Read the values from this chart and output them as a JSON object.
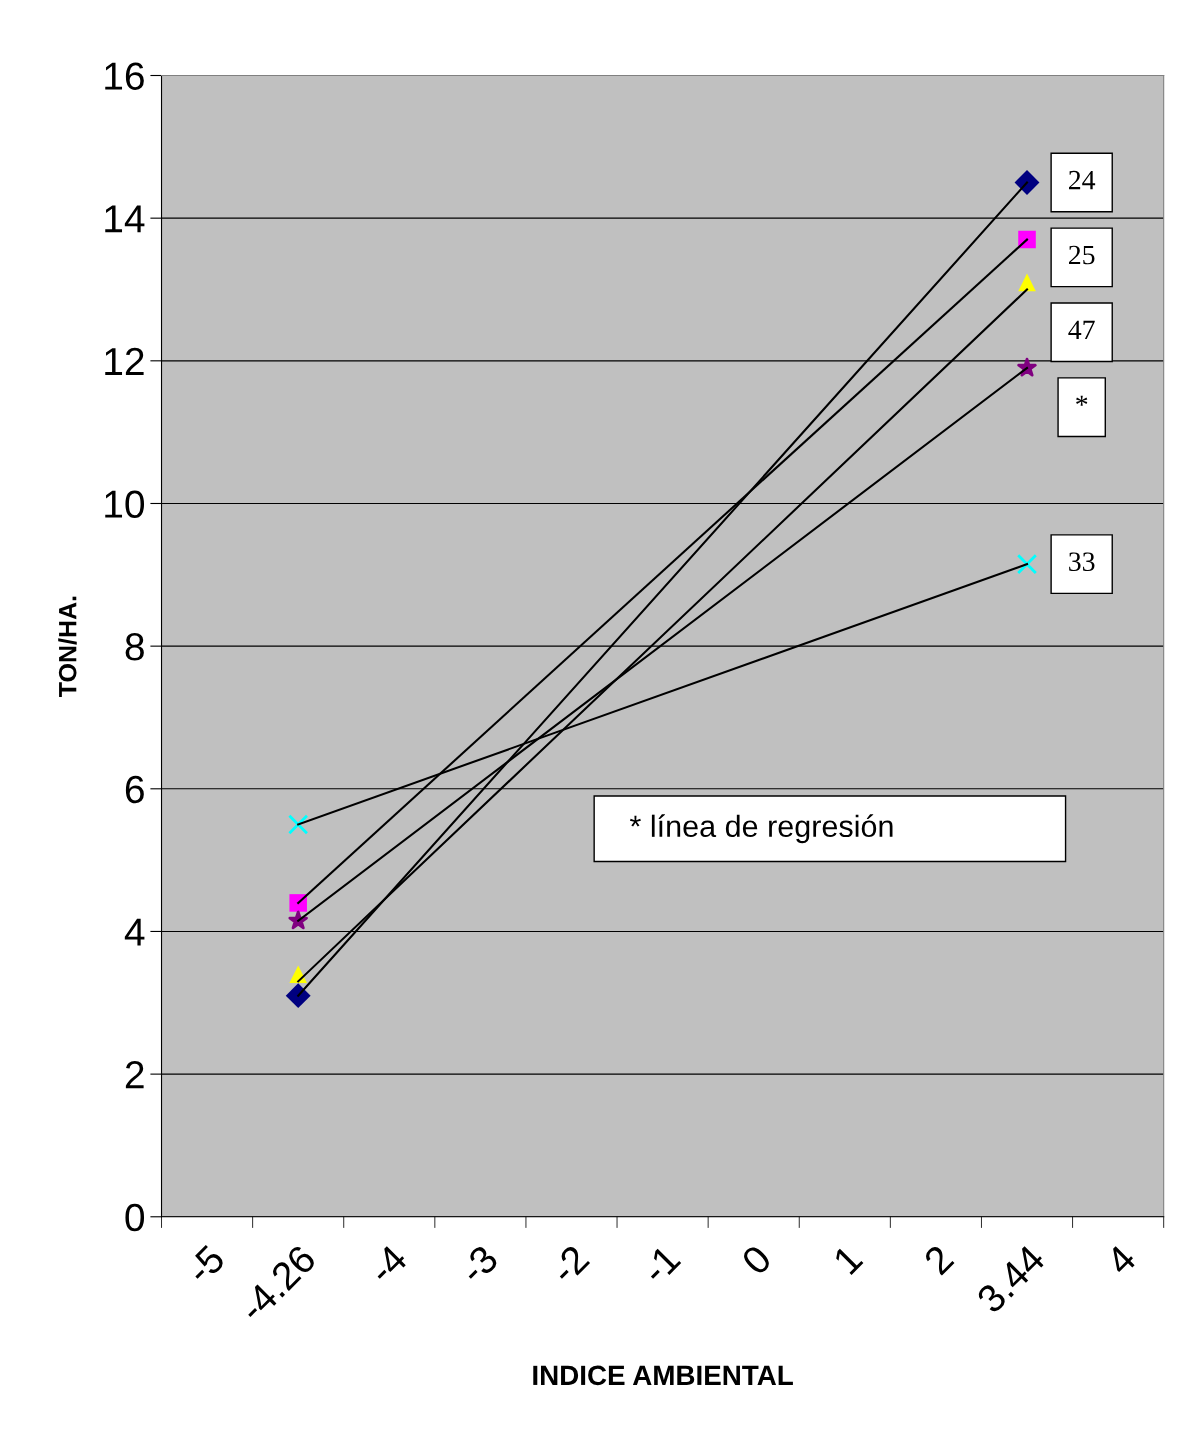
{
  "chart_data": {
    "type": "line",
    "xlabel": "INDICE AMBIENTAL",
    "ylabel": "TON/HA.",
    "categories": [
      "-5",
      "-4.26",
      "-4",
      "-3",
      "-2",
      "-1",
      "0",
      "1",
      "2",
      "3.44",
      "4"
    ],
    "ylim": [
      0,
      16
    ],
    "yticks": [
      0,
      2,
      4,
      6,
      8,
      10,
      12,
      14,
      16
    ],
    "grid": "y",
    "series": [
      {
        "type": "scatter",
        "x": [
          "-4.26",
          "3.44"
        ],
        "values": [
          3.1,
          14.5
        ],
        "color": "#000080",
        "marker": "diamond"
      },
      {
        "type": "scatter",
        "x": [
          "-4.26",
          "3.44"
        ],
        "values": [
          4.4,
          13.7
        ],
        "color": "#ff00ff",
        "marker": "square"
      },
      {
        "type": "scatter",
        "x": [
          "-4.26",
          "3.44"
        ],
        "values": [
          3.4,
          13.1
        ],
        "color": "#ffff00",
        "marker": "triangle"
      },
      {
        "type": "scatter",
        "x": [
          "-4.26",
          "3.44"
        ],
        "values": [
          4.15,
          11.9
        ],
        "color": "#800080",
        "marker": "star"
      },
      {
        "type": "scatter",
        "x": [
          "-4.26",
          "3.44"
        ],
        "values": [
          5.5,
          9.15
        ],
        "color": "#00ffff",
        "marker": "cross"
      },
      {
        "name": "24",
        "x": [
          "-4.26",
          "3.44"
        ],
        "values": [
          3.1,
          14.5
        ],
        "color": "#000000"
      },
      {
        "name": "25",
        "x": [
          "-4.26",
          "3.44"
        ],
        "values": [
          4.4,
          13.7
        ],
        "color": "#000000"
      },
      {
        "name": "47",
        "x": [
          "-4.26",
          "3.44"
        ],
        "values": [
          3.3,
          13.0
        ],
        "color": "#000000"
      },
      {
        "name": "*",
        "x": [
          "-4.26",
          "3.44"
        ],
        "values": [
          4.15,
          11.9
        ],
        "color": "#000000"
      },
      {
        "name": "33",
        "x": [
          "-4.26",
          "3.44"
        ],
        "values": [
          5.5,
          9.15
        ],
        "color": "#000000"
      }
    ],
    "annotations": [
      "* línea de regresión"
    ]
  }
}
